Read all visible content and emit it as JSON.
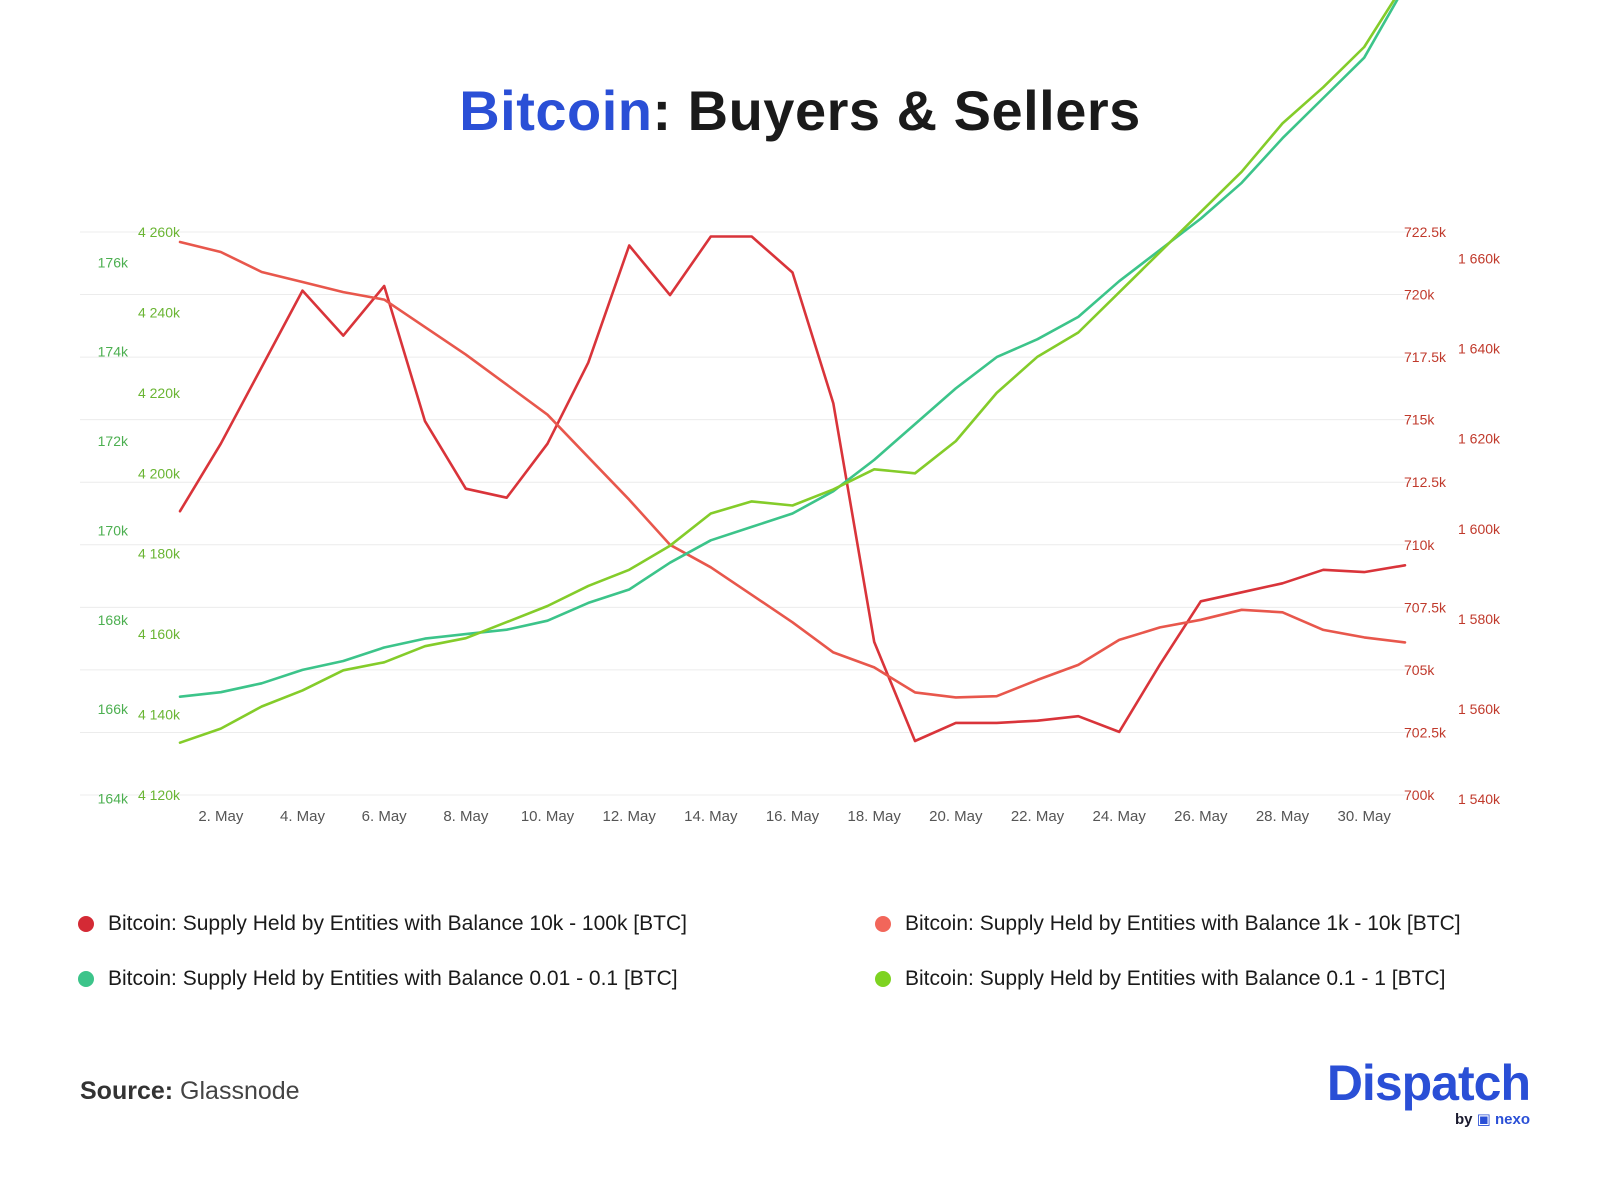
{
  "title": {
    "accent": "Bitcoin",
    "rest": ": Buyers & Sellers"
  },
  "chart_data": {
    "type": "line",
    "x": [
      "1. May",
      "2. May",
      "3. May",
      "4. May",
      "5. May",
      "6. May",
      "7. May",
      "8. May",
      "9. May",
      "10. May",
      "11. May",
      "12. May",
      "13. May",
      "14. May",
      "15. May",
      "16. May",
      "17. May",
      "18. May",
      "19. May",
      "20. May",
      "21. May",
      "22. May",
      "23. May",
      "24. May",
      "25. May",
      "26. May",
      "27. May",
      "28. May",
      "29. May",
      "30. May",
      "31. May"
    ],
    "x_tick_labels": [
      "2. May",
      "4. May",
      "6. May",
      "8. May",
      "10. May",
      "12. May",
      "14. May",
      "16. May",
      "18. May",
      "20. May",
      "22. May",
      "24. May",
      "26. May",
      "28. May",
      "30. May"
    ],
    "axes": {
      "left_outer": {
        "ticks": [
          "164k",
          "166k",
          "168k",
          "170k",
          "172k",
          "174k",
          "176k"
        ],
        "values": [
          164000,
          166000,
          168000,
          170000,
          172000,
          174000,
          176000
        ],
        "range": [
          163900,
          176500
        ],
        "color": "#4caf50"
      },
      "left_inner": {
        "ticks": [
          "4 120k",
          "4 140k",
          "4 160k",
          "4 180k",
          "4 200k",
          "4 220k",
          "4 240k",
          "4 260k"
        ],
        "values": [
          4120000,
          4140000,
          4160000,
          4180000,
          4200000,
          4220000,
          4240000,
          4260000
        ],
        "range": [
          4120000,
          4260000
        ],
        "color": "#6ab533"
      },
      "right_inner": {
        "ticks": [
          "700k",
          "702.5k",
          "705k",
          "707.5k",
          "710k",
          "712.5k",
          "715k",
          "717.5k",
          "720k",
          "722.5k"
        ],
        "values": [
          700000,
          702500,
          705000,
          707500,
          710000,
          712500,
          715000,
          717500,
          720000,
          722500
        ],
        "range": [
          700000,
          722500
        ],
        "color": "#c0392b"
      },
      "right_outer": {
        "ticks": [
          "1 540k",
          "1 560k",
          "1 580k",
          "1 600k",
          "1 620k",
          "1 640k",
          "1 660k"
        ],
        "values": [
          1540000,
          1560000,
          1580000,
          1600000,
          1620000,
          1640000,
          1660000
        ],
        "range": [
          1540000,
          1665000
        ],
        "color": "#c0392b"
      }
    },
    "series": [
      {
        "name": "Bitcoin: Supply Held by Entities with Balance 10k - 100k [BTC]",
        "color": "#d9343a",
        "axis": "right_outer",
        "values": [
          1603,
          1618,
          1635,
          1652,
          1642,
          1653,
          1623,
          1608,
          1606,
          1618,
          1636,
          1662,
          1651,
          1664,
          1664,
          1656,
          1627,
          1574,
          1552,
          1556,
          1556,
          1556.5,
          1557.5,
          1554,
          1569,
          1583,
          1585,
          1587,
          1590,
          1589.5,
          1591
        ]
      },
      {
        "name": "Bitcoin: Supply Held by Entities with Balance 1k - 10k [BTC]",
        "color": "#e8574c",
        "axis": "right_inner",
        "values": [
          722.1,
          721.7,
          720.9,
          720.5,
          720.1,
          719.8,
          718.7,
          717.6,
          716.4,
          715.2,
          713.5,
          711.8,
          710.0,
          709.1,
          708.0,
          706.9,
          705.7,
          705.1,
          704.1,
          703.9,
          703.95,
          704.6,
          705.2,
          706.2,
          706.7,
          707.0,
          707.4,
          707.3,
          706.6,
          706.3,
          706.1
        ]
      },
      {
        "name": "Bitcoin: Supply Held by Entities with Balance 0.01 - 0.1 [BTC]",
        "color": "#3cc48a",
        "axis": "left_outer",
        "values": [
          166.1,
          166.2,
          166.4,
          166.7,
          166.9,
          167.2,
          167.4,
          167.5,
          167.6,
          167.8,
          168.2,
          168.5,
          169.1,
          169.6,
          169.9,
          170.2,
          170.7,
          171.4,
          172.2,
          173.0,
          173.7,
          174.1,
          174.6,
          175.4,
          176.1,
          176.8,
          177.6,
          178.6,
          179.5,
          180.4,
          182.0
        ]
      },
      {
        "name": "Bitcoin: Supply Held by Entities with Balance 0.1 - 1 [BTC]",
        "color": "#84cc2a",
        "axis": "left_inner",
        "values": [
          4133,
          4136.5,
          4142,
          4146,
          4151,
          4153,
          4157,
          4159,
          4163,
          4167,
          4172,
          4176,
          4182,
          4190,
          4193,
          4192,
          4196,
          4201,
          4200,
          4208,
          4220,
          4229,
          4235,
          4245,
          4255,
          4265,
          4275,
          4287,
          4296,
          4306,
          4322
        ]
      }
    ]
  },
  "legend": [
    {
      "label": "Bitcoin: Supply Held by Entities with Balance 10k - 100k [BTC]",
      "color": "#d42a35"
    },
    {
      "label": "Bitcoin: Supply Held by Entities with Balance 1k - 10k [BTC]",
      "color": "#f2665a"
    },
    {
      "label": "Bitcoin: Supply Held by Entities with Balance 0.01 - 0.1 [BTC]",
      "color": "#3cc48a"
    },
    {
      "label": "Bitcoin: Supply Held by Entities with Balance 0.1 - 1 [BTC]",
      "color": "#7ed321"
    }
  ],
  "source": {
    "label": "Source:",
    "value": "Glassnode"
  },
  "logo": {
    "word": "Dispatch",
    "by": "by",
    "brand": "nexo"
  }
}
